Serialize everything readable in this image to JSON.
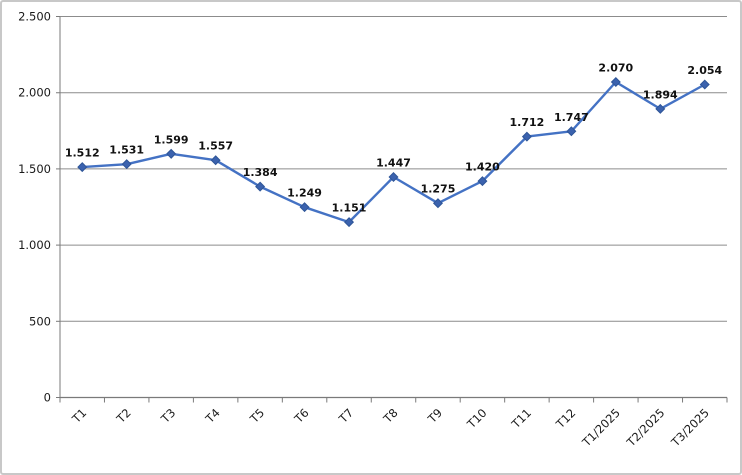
{
  "chart_data": {
    "type": "line",
    "title": "",
    "categories": [
      "T1",
      "T2",
      "T3",
      "T4",
      "T5",
      "T6",
      "T7",
      "T8",
      "T9",
      "T10",
      "T11",
      "T12",
      "T1/2025",
      "T2/2025",
      "T3/2025"
    ],
    "values": [
      1512,
      1531,
      1599,
      1557,
      1384,
      1249,
      1151,
      1447,
      1275,
      1420,
      1712,
      1747,
      2070,
      1894,
      2054
    ],
    "value_labels": [
      "1.512",
      "1.531",
      "1.599",
      "1.557",
      "1.384",
      "1.249",
      "1.151",
      "1.447",
      "1.275",
      "1.420",
      "1.712",
      "1.747",
      "2.070",
      "1.894",
      "2.054"
    ],
    "ylim": [
      0,
      2500
    ],
    "ytick_interval": 500,
    "ytick_labels": [
      "0",
      "500",
      "1.000",
      "1.500",
      "2.000",
      "2.500"
    ],
    "grid": true,
    "legend": "none",
    "xtick_rotation": -45,
    "marker_shape": "diamond",
    "colors": {
      "line": "#4472C4",
      "marker_fill": "#3B62AE",
      "marker_edge": "#2E5597",
      "gridline": "#8c8c8c",
      "axis": "#7a7a7a",
      "data_label": "#111111",
      "last_data_label": "#E00000",
      "chart_border": "#c8c8c8",
      "background": "#ffffff"
    }
  }
}
